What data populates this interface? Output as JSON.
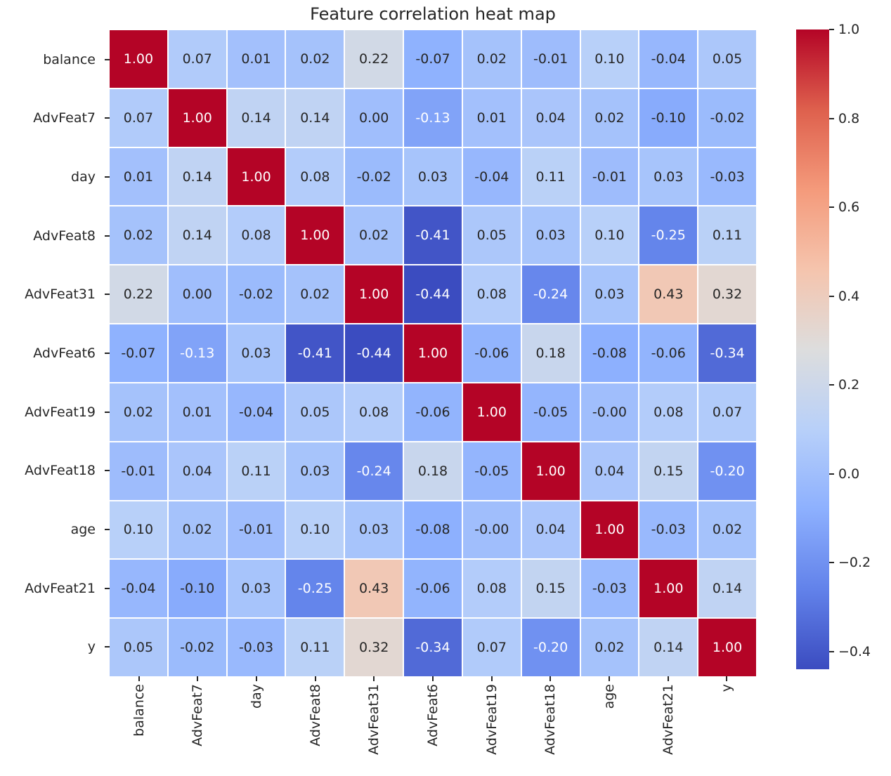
{
  "figure": {
    "background": "#ffffff"
  },
  "chart_data": {
    "type": "heatmap",
    "title": "Feature correlation heat map",
    "xlabel": "",
    "ylabel": "",
    "categories": [
      "balance",
      "AdvFeat7",
      "day",
      "AdvFeat8",
      "AdvFeat31",
      "AdvFeat6",
      "AdvFeat19",
      "AdvFeat18",
      "age",
      "AdvFeat21",
      "y"
    ],
    "matrix": [
      [
        1.0,
        0.07,
        0.01,
        0.02,
        0.22,
        -0.07,
        0.02,
        -0.01,
        0.1,
        -0.04,
        0.05
      ],
      [
        0.07,
        1.0,
        0.14,
        0.14,
        0.0,
        -0.13,
        0.01,
        0.04,
        0.02,
        -0.1,
        -0.02
      ],
      [
        0.01,
        0.14,
        1.0,
        0.08,
        -0.02,
        0.03,
        -0.04,
        0.11,
        -0.01,
        0.03,
        -0.03
      ],
      [
        0.02,
        0.14,
        0.08,
        1.0,
        0.02,
        -0.41,
        0.05,
        0.03,
        0.1,
        -0.25,
        0.11
      ],
      [
        0.22,
        0.0,
        -0.02,
        0.02,
        1.0,
        -0.44,
        0.08,
        -0.24,
        0.03,
        0.43,
        0.32
      ],
      [
        -0.07,
        -0.13,
        0.03,
        -0.41,
        -0.44,
        1.0,
        -0.06,
        0.18,
        -0.08,
        -0.06,
        -0.34
      ],
      [
        0.02,
        0.01,
        -0.04,
        0.05,
        0.08,
        -0.06,
        1.0,
        -0.05,
        -0.0,
        0.08,
        0.07
      ],
      [
        -0.01,
        0.04,
        0.11,
        0.03,
        -0.24,
        0.18,
        -0.05,
        1.0,
        0.04,
        0.15,
        -0.2
      ],
      [
        0.1,
        0.02,
        -0.01,
        0.1,
        0.03,
        -0.08,
        -0.0,
        0.04,
        1.0,
        -0.03,
        0.02
      ],
      [
        -0.04,
        -0.1,
        0.03,
        -0.25,
        0.43,
        -0.06,
        0.08,
        0.15,
        -0.03,
        1.0,
        0.14
      ],
      [
        0.05,
        -0.02,
        -0.03,
        0.11,
        0.32,
        -0.34,
        0.07,
        -0.2,
        0.02,
        0.14,
        1.0
      ]
    ],
    "cell_labels": [
      [
        "1.00",
        "0.07",
        "0.01",
        "0.02",
        "0.22",
        "-0.07",
        "0.02",
        "-0.01",
        "0.10",
        "-0.04",
        "0.05"
      ],
      [
        "0.07",
        "1.00",
        "0.14",
        "0.14",
        "0.00",
        "-0.13",
        "0.01",
        "0.04",
        "0.02",
        "-0.10",
        "-0.02"
      ],
      [
        "0.01",
        "0.14",
        "1.00",
        "0.08",
        "-0.02",
        "0.03",
        "-0.04",
        "0.11",
        "-0.01",
        "0.03",
        "-0.03"
      ],
      [
        "0.02",
        "0.14",
        "0.08",
        "1.00",
        "0.02",
        "-0.41",
        "0.05",
        "0.03",
        "0.10",
        "-0.25",
        "0.11"
      ],
      [
        "0.22",
        "0.00",
        "-0.02",
        "0.02",
        "1.00",
        "-0.44",
        "0.08",
        "-0.24",
        "0.03",
        "0.43",
        "0.32"
      ],
      [
        "-0.07",
        "-0.13",
        "0.03",
        "-0.41",
        "-0.44",
        "1.00",
        "-0.06",
        "0.18",
        "-0.08",
        "-0.06",
        "-0.34"
      ],
      [
        "0.02",
        "0.01",
        "-0.04",
        "0.05",
        "0.08",
        "-0.06",
        "1.00",
        "-0.05",
        "-0.00",
        "0.08",
        "0.07"
      ],
      [
        "-0.01",
        "0.04",
        "0.11",
        "0.03",
        "-0.24",
        "0.18",
        "-0.05",
        "1.00",
        "0.04",
        "0.15",
        "-0.20"
      ],
      [
        "0.10",
        "0.02",
        "-0.01",
        "0.10",
        "0.03",
        "-0.08",
        "-0.00",
        "0.04",
        "1.00",
        "-0.03",
        "0.02"
      ],
      [
        "-0.04",
        "-0.10",
        "0.03",
        "-0.25",
        "0.43",
        "-0.06",
        "0.08",
        "0.15",
        "-0.03",
        "1.00",
        "0.14"
      ],
      [
        "0.05",
        "-0.02",
        "-0.03",
        "0.11",
        "0.32",
        "-0.34",
        "0.07",
        "-0.20",
        "0.02",
        "0.14",
        "1.00"
      ]
    ],
    "vmin": -0.44,
    "vmax": 1.0,
    "grid_on": false,
    "legend_position": "colorbar-right",
    "colormap": {
      "name": "coolwarm",
      "stops": [
        "#3b4cc0",
        "#6282ea",
        "#8db0fe",
        "#b8d0f9",
        "#dddddd",
        "#f5c4ad",
        "#f49a7b",
        "#de604d",
        "#b40426"
      ]
    },
    "colorbar": {
      "tick_labels": [
        "1.0",
        "0.8",
        "0.6",
        "0.4",
        "0.2",
        "0.0",
        "−0.2",
        "−0.4"
      ],
      "tick_values": [
        1.0,
        0.8,
        0.6,
        0.4,
        0.2,
        0.0,
        -0.2,
        -0.4
      ]
    },
    "grid_line_color": "#ffffff",
    "text_color": "#262626",
    "annotation_colors": {
      "on_light": "#262626",
      "on_dark": "#ffffff"
    }
  }
}
